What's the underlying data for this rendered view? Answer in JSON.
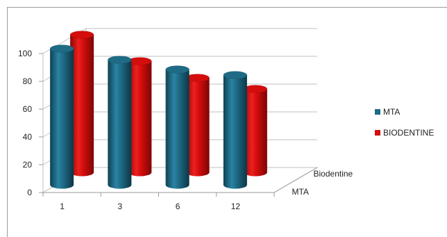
{
  "chart_data": {
    "type": "bar",
    "variant": "3d-clustered-cylinder",
    "title": "",
    "xlabel": "",
    "ylabel": "",
    "categories": [
      "1",
      "3",
      "6",
      "12"
    ],
    "ylim": [
      0,
      100
    ],
    "yticks": [
      "0",
      "20",
      "40",
      "60",
      "80",
      "100"
    ],
    "series": [
      {
        "name": "MTA",
        "values": [
          98,
          90,
          83,
          79
        ],
        "color": "#1f6b86"
      },
      {
        "name": "BIODENTINE",
        "values": [
          99,
          80,
          68,
          60
        ],
        "color": "#d40d0d"
      }
    ],
    "depth_labels": [
      "MTA",
      "Biodentine"
    ],
    "legend_position": "right",
    "grid": true
  }
}
